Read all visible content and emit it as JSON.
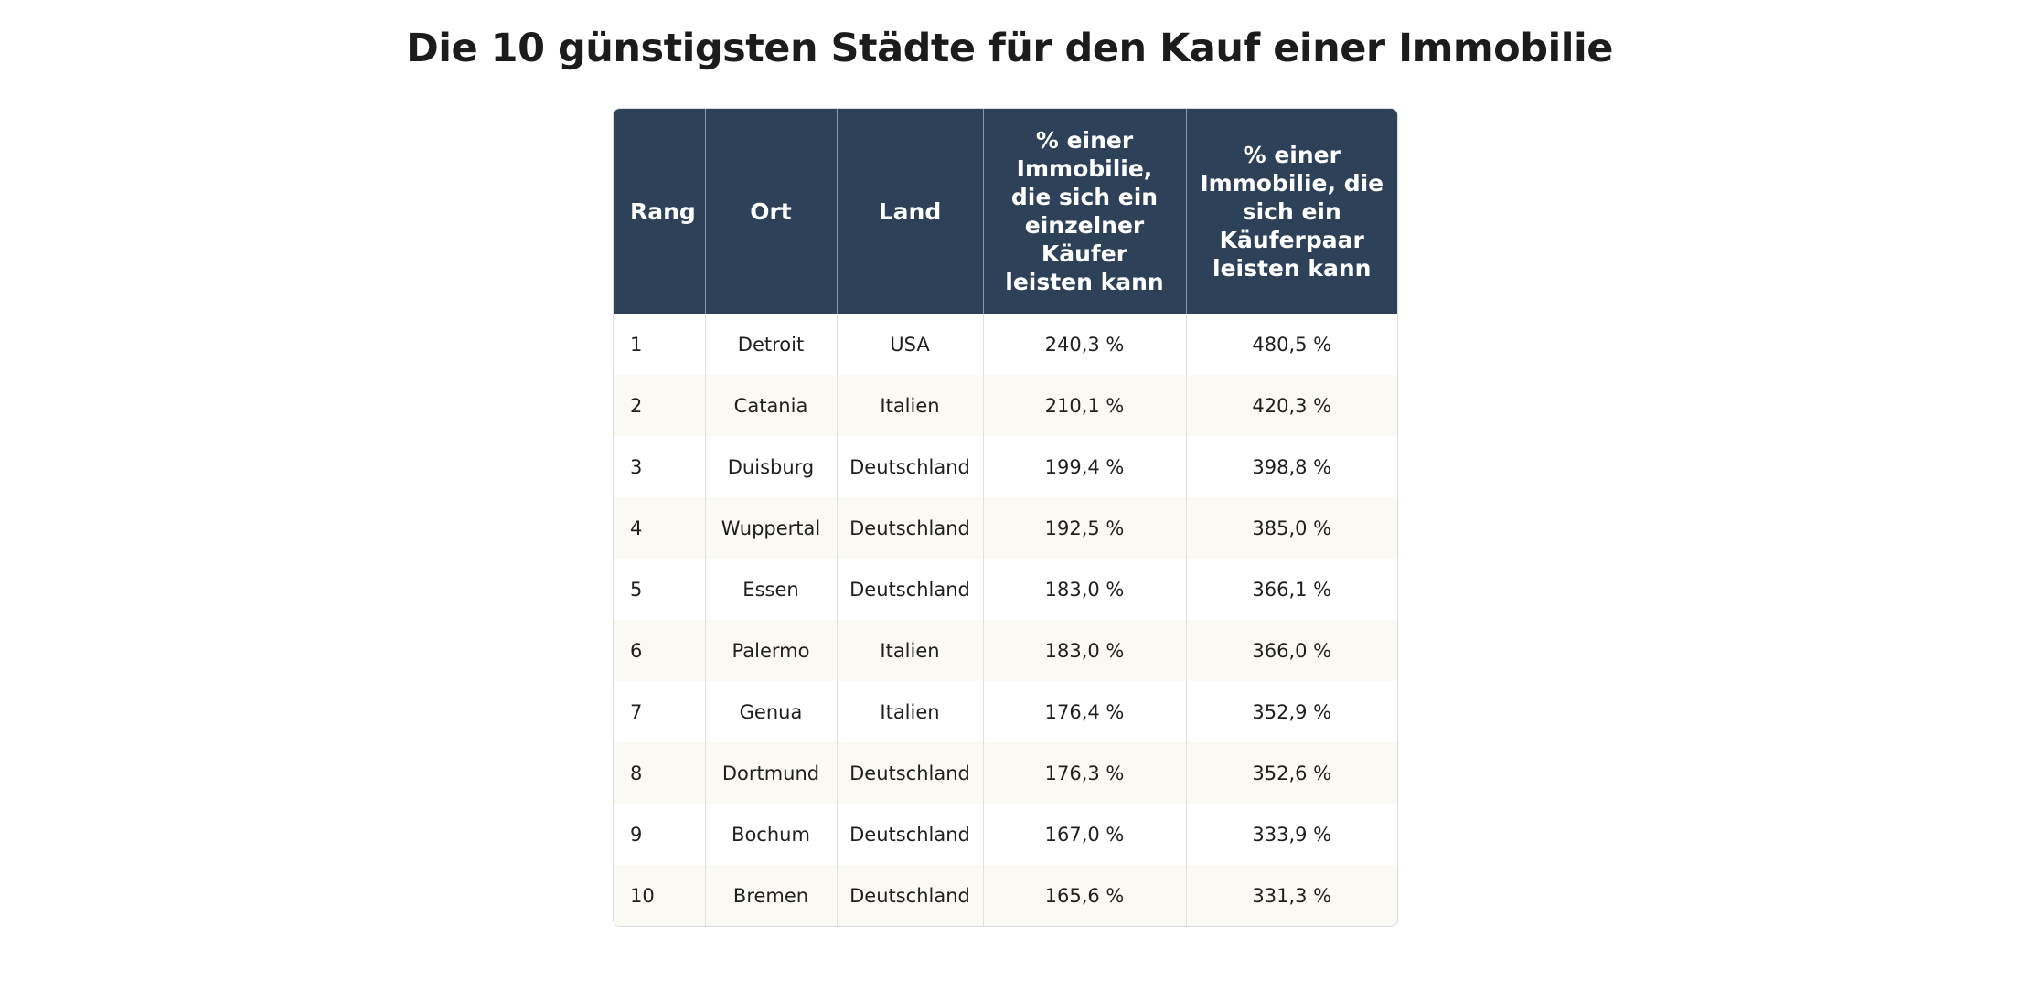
{
  "title": "Die 10 günstigsten Städte für den Kauf einer Immobilie",
  "table": {
    "header": [
      "Rang",
      "Ort",
      "Land",
      "% einer Immobilie, die sich ein einzelner Käufer leisten kann",
      "% einer Immobilie, die sich ein Käuferpaar leisten kann"
    ],
    "rows": [
      [
        "1",
        "Detroit",
        "USA",
        "240,3 %",
        "480,5 %"
      ],
      [
        "2",
        "Catania",
        "Italien",
        "210,1 %",
        "420,3 %"
      ],
      [
        "3",
        "Duisburg",
        "Deutschland",
        "199,4 %",
        "398,8 %"
      ],
      [
        "4",
        "Wuppertal",
        "Deutschland",
        "192,5 %",
        "385,0 %"
      ],
      [
        "5",
        "Essen",
        "Deutschland",
        "183,0 %",
        "366,1 %"
      ],
      [
        "6",
        "Palermo",
        "Italien",
        "183,0 %",
        "366,0 %"
      ],
      [
        "7",
        "Genua",
        "Italien",
        "176,4 %",
        "352,9 %"
      ],
      [
        "8",
        "Dortmund",
        "Deutschland",
        "176,3 %",
        "352,6 %"
      ],
      [
        "9",
        "Bochum",
        "Deutschland",
        "167,0 %",
        "333,9 %"
      ],
      [
        "10",
        "Bremen",
        "Deutschland",
        "165,6 %",
        "331,3 %"
      ]
    ]
  }
}
